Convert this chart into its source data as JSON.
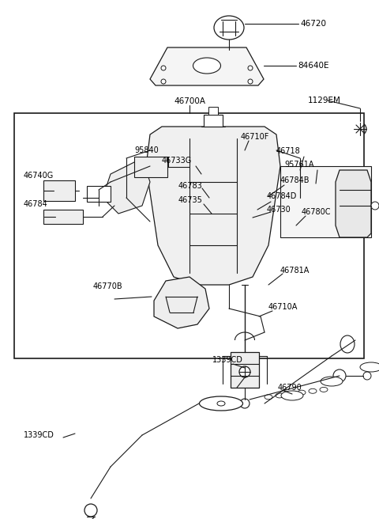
{
  "bg_color": "#ffffff",
  "line_color": "#1a1a1a",
  "text_color": "#000000",
  "fig_width": 4.8,
  "fig_height": 6.56,
  "dpi": 100,
  "xlim": [
    0,
    480
  ],
  "ylim": [
    0,
    656
  ]
}
